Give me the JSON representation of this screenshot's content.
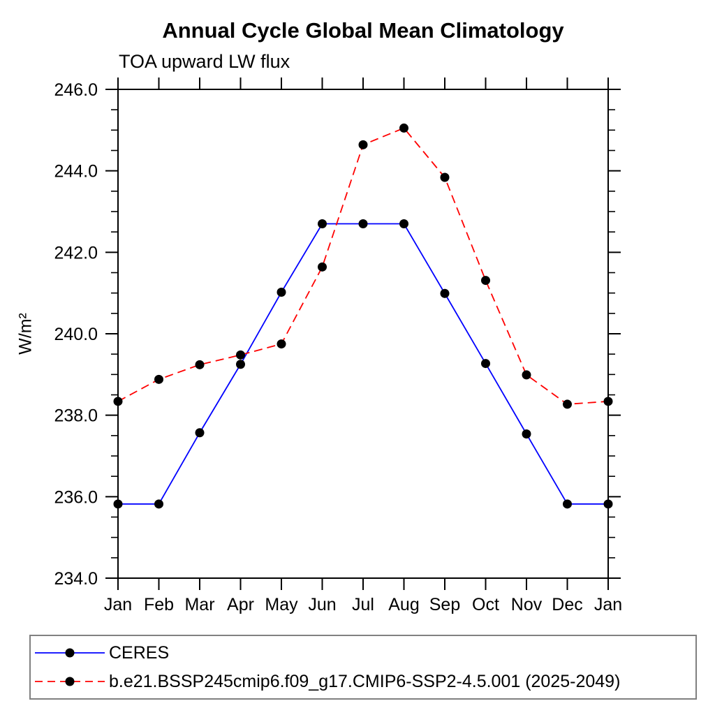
{
  "page": {
    "background": "#ffffff",
    "text_color": "#000000",
    "axis_color": "#000000",
    "legend_border_color": "#808080"
  },
  "chart_data": {
    "type": "line",
    "title": "Annual Cycle Global Mean Climatology",
    "subtitle": "TOA upward LW flux",
    "ylabel": "W/m²",
    "xlabel": "",
    "x_categories": [
      "Jan",
      "Feb",
      "Mar",
      "Apr",
      "May",
      "Jun",
      "Jul",
      "Aug",
      "Sep",
      "Oct",
      "Nov",
      "Dec",
      "Jan"
    ],
    "ylim": [
      234.0,
      246.0
    ],
    "ytick_interval_major": 2.0,
    "ytick_interval_minor": 0.5,
    "ytick_labels": [
      "234.0",
      "236.0",
      "238.0",
      "240.0",
      "242.0",
      "244.0",
      "246.0"
    ],
    "grid": false,
    "legend_position": "bottom-left-box",
    "marker": "filled-circle",
    "marker_color": "#000000",
    "series": [
      {
        "name": "CERES",
        "line_color": "#0000ff",
        "line_style": "solid",
        "values": [
          235.82,
          235.82,
          237.57,
          239.25,
          241.02,
          242.7,
          242.7,
          242.7,
          240.99,
          239.27,
          237.54,
          235.82,
          235.82
        ]
      },
      {
        "name": "b.e21.BSSP245cmip6.f09_g17.CMIP6-SSP2-4.5.001 (2025-2049)",
        "line_color": "#ff0000",
        "line_style": "dashed",
        "values": [
          238.34,
          238.88,
          239.24,
          239.48,
          239.75,
          241.64,
          244.64,
          245.05,
          243.84,
          241.31,
          238.99,
          238.27,
          238.34
        ]
      }
    ]
  }
}
